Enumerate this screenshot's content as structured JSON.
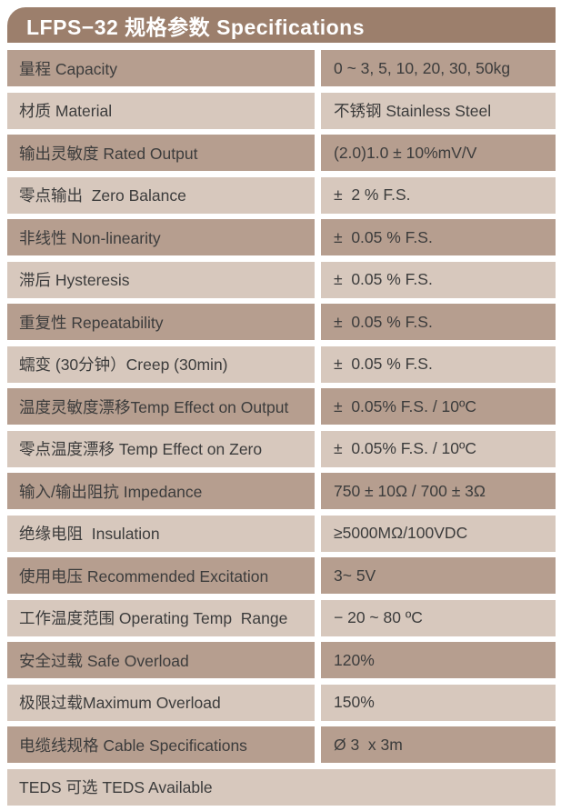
{
  "header": {
    "title": "LFPS−32 规格参数 Specifications"
  },
  "colors": {
    "header_bg": "#9c7f6c",
    "row_dark": "#b69e8f",
    "row_light": "#d7c8bd",
    "text": "#3c3c3c",
    "header_text": "#ffffff"
  },
  "table": {
    "rows": [
      {
        "label": "量程 Capacity",
        "value": "0 ~ 3, 5, 10, 20, 30, 50kg",
        "shade": "dark"
      },
      {
        "label": "材质 Material",
        "value": "不锈钢 Stainless Steel",
        "shade": "light"
      },
      {
        "label": "输出灵敏度 Rated Output",
        "value": "(2.0)1.0 ± 10%mV/V",
        "shade": "dark"
      },
      {
        "label": "零点输出  Zero Balance",
        "value": "±  2 % F.S.",
        "shade": "light"
      },
      {
        "label": "非线性 Non-linearity",
        "value": "±  0.05 % F.S.",
        "shade": "dark"
      },
      {
        "label": "滞后 Hysteresis",
        "value": "±  0.05 % F.S.",
        "shade": "light"
      },
      {
        "label": "重复性 Repeatability",
        "value": "±  0.05 % F.S.",
        "shade": "dark"
      },
      {
        "label": "蠕变 (30分钟）Creep (30min)",
        "value": "±  0.05 % F.S.",
        "shade": "light"
      },
      {
        "label": "温度灵敏度漂移Temp Effect on Output",
        "value": "±  0.05% F.S. / 10ºC",
        "shade": "dark"
      },
      {
        "label": "零点温度漂移 Temp Effect on Zero",
        "value": "±  0.05% F.S. / 10ºC",
        "shade": "light"
      },
      {
        "label": "输入/输出阻抗 Impedance",
        "value": "750 ± 10Ω / 700 ± 3Ω",
        "shade": "dark"
      },
      {
        "label": "绝缘电阻  Insulation",
        "value": "≥5000MΩ/100VDC",
        "shade": "light"
      },
      {
        "label": "使用电压 Recommended Excitation",
        "value": "3~ 5V",
        "shade": "dark"
      },
      {
        "label": "工作温度范围 Operating Temp  Range",
        "value": "− 20 ~ 80 ºC",
        "shade": "light"
      },
      {
        "label": "安全过载 Safe Overload",
        "value": "120%",
        "shade": "dark"
      },
      {
        "label": "极限过载Maximum Overload",
        "value": "150%",
        "shade": "light"
      },
      {
        "label": "电缆线规格 Cable Specifications",
        "value": "Ø 3  x 3m",
        "shade": "dark"
      },
      {
        "label": "TEDS 可选 TEDS Available",
        "value": "",
        "shade": "light",
        "full_width": true
      }
    ]
  }
}
